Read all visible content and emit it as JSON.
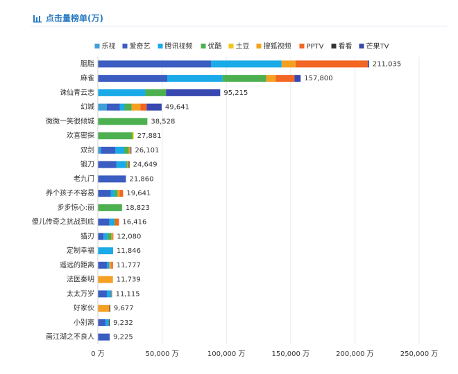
{
  "chart_data": {
    "type": "stacked-bar-horizontal",
    "title": "点击量榜单(万)",
    "categories": [
      "胭脂",
      "麻雀",
      "诛仙青云志",
      "幻城",
      "微微一笑很倾城",
      "欢喜密探",
      "双剑",
      "锻刀",
      "老九门",
      "养个孩子不容易",
      "步步惊心:丽",
      "傻儿传奇之抗战到底",
      "猎刃",
      "定制幸福",
      "遥远的距离",
      "法医秦明",
      "太太万岁",
      "好家伙",
      "小别离",
      "画江湖之不良人"
    ],
    "series": [
      {
        "name": "乐视",
        "color": "#3fa0d8",
        "values": [
          0,
          0,
          0,
          7000,
          0,
          0,
          2500,
          0,
          0,
          0,
          0,
          0,
          0,
          0,
          0,
          0,
          0,
          0,
          0,
          0
        ]
      },
      {
        "name": "爱奇艺",
        "color": "#3b5cc0",
        "values": [
          88000,
          54000,
          0,
          10000,
          0,
          0,
          11000,
          14500,
          21860,
          10000,
          0,
          9000,
          4500,
          0,
          7000,
          0,
          7000,
          0,
          6000,
          9225
        ]
      },
      {
        "name": "腾讯视频",
        "color": "#1aaae8",
        "values": [
          55000,
          43000,
          37000,
          3800,
          0,
          0,
          7000,
          7500,
          0,
          3000,
          0,
          3500,
          3000,
          11846,
          2000,
          0,
          3500,
          0,
          2500,
          0
        ]
      },
      {
        "name": "优酷",
        "color": "#4cb050",
        "values": [
          0,
          34000,
          16000,
          5400,
          38528,
          27000,
          3500,
          1000,
          0,
          2500,
          18823,
          1000,
          3000,
          0,
          0,
          0,
          0,
          0,
          0,
          0
        ]
      },
      {
        "name": "土豆",
        "color": "#f5c518",
        "values": [
          0,
          0,
          0,
          0,
          0,
          881,
          0,
          0,
          0,
          0,
          0,
          0,
          0,
          0,
          0,
          0,
          0,
          0,
          0,
          0
        ]
      },
      {
        "name": "搜狐视频",
        "color": "#f5a023",
        "values": [
          11000,
          7500,
          0,
          7000,
          0,
          0,
          1500,
          1000,
          0,
          1500,
          0,
          0,
          1000,
          0,
          1500,
          11739,
          0,
          9000,
          0,
          0
        ]
      },
      {
        "name": "PPTV",
        "color": "#f26522",
        "values": [
          56000,
          14500,
          0,
          4800,
          0,
          0,
          0,
          0,
          0,
          2641,
          0,
          2916,
          580,
          0,
          1277,
          0,
          615,
          0,
          0,
          0
        ]
      },
      {
        "name": "看看",
        "color": "#333333",
        "values": [
          0,
          0,
          0,
          0,
          0,
          0,
          0,
          649,
          0,
          0,
          0,
          0,
          0,
          0,
          0,
          0,
          0,
          677,
          732,
          0
        ]
      },
      {
        "name": "芒果TV",
        "color": "#3848b0",
        "values": [
          1035,
          4800,
          42215,
          11641,
          0,
          0,
          601,
          0,
          0,
          0,
          0,
          0,
          0,
          0,
          0,
          0,
          0,
          0,
          0,
          0
        ]
      }
    ],
    "totals": {
      "values": [
        211035,
        157800,
        95215,
        49641,
        38528,
        27881,
        26101,
        24649,
        21860,
        19641,
        18823,
        16416,
        12080,
        11846,
        11777,
        11739,
        11115,
        9677,
        9232,
        9225
      ],
      "value_labels": [
        "211,035",
        "157,800",
        "95,215",
        "49,641",
        "38,528",
        "27,881",
        "26,101",
        "24,649",
        "21,860",
        "19,641",
        "18,823",
        "16,416",
        "12,080",
        "11,846",
        "11,777",
        "11,739",
        "11,115",
        "9,677",
        "9,232",
        "9,225"
      ]
    },
    "xlim": [
      0,
      250000
    ],
    "xticks": [
      {
        "value": 0,
        "label": "0 万"
      },
      {
        "value": 50000,
        "label": "50,000 万"
      },
      {
        "value": 100000,
        "label": "100,000 万"
      },
      {
        "value": 150000,
        "label": "150,000 万"
      },
      {
        "value": 200000,
        "label": "200,000 万"
      },
      {
        "value": 250000,
        "label": "250,000 万"
      }
    ],
    "grid": true,
    "legend": "top"
  }
}
